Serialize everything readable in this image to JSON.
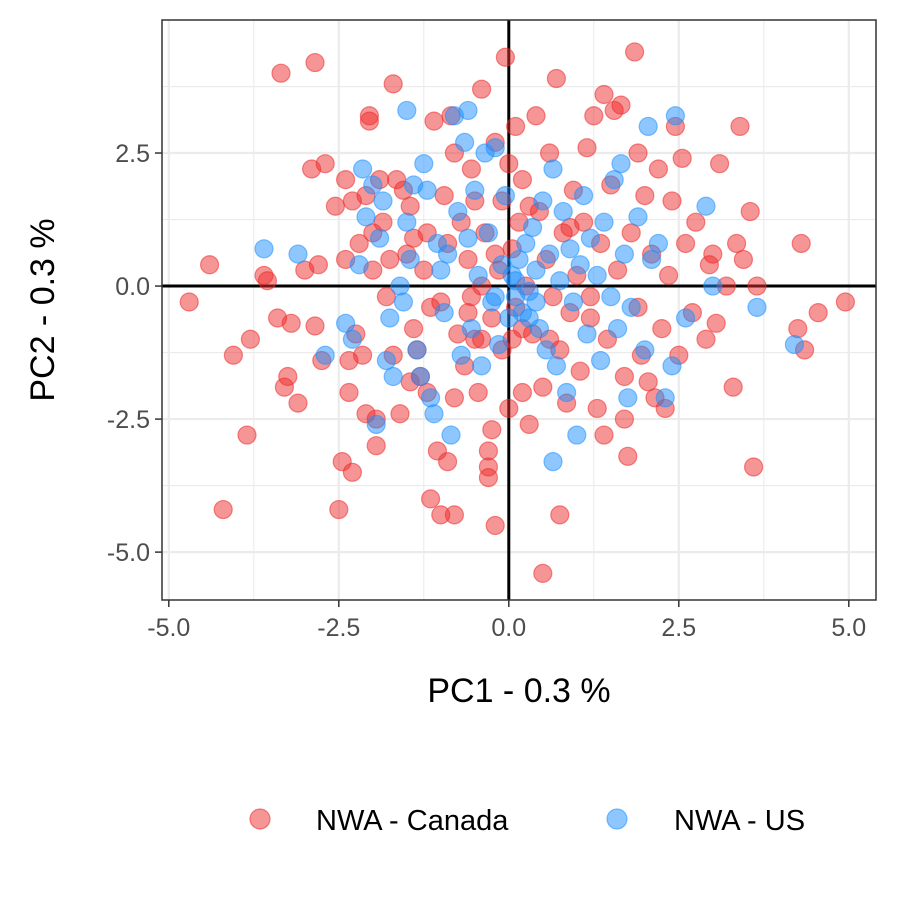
{
  "chart_data": {
    "type": "scatter",
    "xlabel": "PC1 - 0.3 %",
    "ylabel": "PC2 - 0.3 %",
    "xlim": [
      -5.1,
      5.4
    ],
    "ylim": [
      -5.9,
      5.0
    ],
    "x_ticks": [
      -5.0,
      -2.5,
      0.0,
      2.5,
      5.0
    ],
    "x_tick_labels": [
      "-5.0",
      "-2.5",
      "0.0",
      "2.5",
      "5.0"
    ],
    "y_ticks": [
      -5.0,
      -2.5,
      0.0,
      2.5
    ],
    "y_tick_labels": [
      "-5.0",
      "-2.5",
      "0.0",
      "2.5"
    ],
    "grid": true,
    "reference_lines": {
      "x": 0,
      "y": 0
    },
    "legend_position": "bottom",
    "series": [
      {
        "name": "NWA - Canada",
        "color": "#EE2C2C",
        "points": [
          [
            -4.7,
            -0.3
          ],
          [
            -4.4,
            0.4
          ],
          [
            -4.2,
            -4.2
          ],
          [
            -4.05,
            -1.3
          ],
          [
            -3.85,
            -2.8
          ],
          [
            -3.8,
            -1.0
          ],
          [
            -3.6,
            0.2
          ],
          [
            -3.55,
            0.1
          ],
          [
            -3.4,
            -0.6
          ],
          [
            -3.35,
            4.0
          ],
          [
            -3.3,
            -1.9
          ],
          [
            -3.25,
            -1.7
          ],
          [
            -3.2,
            -0.7
          ],
          [
            -3.1,
            -2.2
          ],
          [
            -3.0,
            0.3
          ],
          [
            -2.9,
            2.2
          ],
          [
            -2.85,
            4.2
          ],
          [
            -2.85,
            -0.75
          ],
          [
            -2.8,
            0.4
          ],
          [
            -2.75,
            -1.4
          ],
          [
            -2.7,
            2.3
          ],
          [
            -2.55,
            1.5
          ],
          [
            -2.5,
            -4.2
          ],
          [
            -2.45,
            -3.3
          ],
          [
            -2.4,
            2.0
          ],
          [
            -2.4,
            0.5
          ],
          [
            -2.35,
            -1.4
          ],
          [
            -2.35,
            -2.0
          ],
          [
            -2.3,
            -3.5
          ],
          [
            -2.3,
            1.6
          ],
          [
            -2.25,
            -0.9
          ],
          [
            -2.2,
            0.8
          ],
          [
            -2.15,
            -1.3
          ],
          [
            -2.1,
            -2.4
          ],
          [
            -2.1,
            1.7
          ],
          [
            -2.05,
            3.2
          ],
          [
            -2.05,
            3.1
          ],
          [
            -2.0,
            0.3
          ],
          [
            -2.0,
            1.0
          ],
          [
            -1.95,
            -3.0
          ],
          [
            -1.95,
            -2.5
          ],
          [
            -1.9,
            2.0
          ],
          [
            -1.85,
            1.2
          ],
          [
            -1.8,
            -0.2
          ],
          [
            -1.75,
            0.5
          ],
          [
            -1.7,
            3.8
          ],
          [
            -1.7,
            -1.3
          ],
          [
            -1.65,
            2.0
          ],
          [
            -1.6,
            -2.4
          ],
          [
            -1.55,
            1.8
          ],
          [
            -1.5,
            0.6
          ],
          [
            -1.45,
            -1.8
          ],
          [
            -1.45,
            1.5
          ],
          [
            -1.4,
            -0.8
          ],
          [
            -1.35,
            -1.2
          ],
          [
            -1.3,
            -1.7
          ],
          [
            -1.25,
            0.3
          ],
          [
            -1.2,
            -2.0
          ],
          [
            -1.2,
            1.0
          ],
          [
            -1.15,
            -0.4
          ],
          [
            -1.15,
            -4.0
          ],
          [
            -1.1,
            3.1
          ],
          [
            -1.05,
            -3.1
          ],
          [
            -1.0,
            -0.3
          ],
          [
            -1.0,
            -4.3
          ],
          [
            -0.95,
            1.7
          ],
          [
            -0.9,
            -3.3
          ],
          [
            -0.9,
            0.8
          ],
          [
            -0.85,
            3.2
          ],
          [
            -0.8,
            2.5
          ],
          [
            -0.8,
            -4.3
          ],
          [
            -0.75,
            -0.9
          ],
          [
            -0.7,
            1.2
          ],
          [
            -0.65,
            -1.5
          ],
          [
            -0.6,
            0.5
          ],
          [
            -0.55,
            2.2
          ],
          [
            -0.55,
            -0.2
          ],
          [
            -0.5,
            -1.0
          ],
          [
            -0.5,
            1.6
          ],
          [
            -0.45,
            -2.0
          ],
          [
            -0.4,
            3.7
          ],
          [
            -0.4,
            0.0
          ],
          [
            -0.35,
            1.0
          ],
          [
            -0.3,
            -3.1
          ],
          [
            -0.3,
            -3.4
          ],
          [
            -0.3,
            -3.6
          ],
          [
            -0.25,
            -2.7
          ],
          [
            -0.25,
            -0.6
          ],
          [
            -0.2,
            2.7
          ],
          [
            -0.2,
            -4.5
          ],
          [
            -0.15,
            0.3
          ],
          [
            -0.1,
            1.6
          ],
          [
            -0.1,
            -1.2
          ],
          [
            -0.05,
            4.3
          ],
          [
            0.0,
            2.3
          ],
          [
            0.0,
            -2.3
          ],
          [
            0.05,
            -1.0
          ],
          [
            0.05,
            0.7
          ],
          [
            0.1,
            3.0
          ],
          [
            0.1,
            -0.4
          ],
          [
            0.15,
            1.2
          ],
          [
            0.2,
            -2.0
          ],
          [
            0.2,
            2.0
          ],
          [
            0.25,
            0.0
          ],
          [
            0.3,
            -2.6
          ],
          [
            0.35,
            -0.9
          ],
          [
            0.4,
            3.2
          ],
          [
            0.45,
            1.4
          ],
          [
            0.5,
            -5.4
          ],
          [
            0.5,
            -1.9
          ],
          [
            0.55,
            0.5
          ],
          [
            0.6,
            2.5
          ],
          [
            0.65,
            -0.2
          ],
          [
            0.7,
            3.9
          ],
          [
            0.75,
            -4.3
          ],
          [
            0.75,
            -1.2
          ],
          [
            0.8,
            1.0
          ],
          [
            0.85,
            -2.2
          ],
          [
            0.9,
            -0.5
          ],
          [
            0.95,
            1.8
          ],
          [
            1.0,
            0.2
          ],
          [
            1.05,
            -1.6
          ],
          [
            1.1,
            1.2
          ],
          [
            1.15,
            2.6
          ],
          [
            1.2,
            -0.6
          ],
          [
            1.25,
            3.2
          ],
          [
            1.3,
            -2.3
          ],
          [
            1.35,
            0.8
          ],
          [
            1.4,
            3.6
          ],
          [
            1.4,
            -2.8
          ],
          [
            1.45,
            -1.0
          ],
          [
            1.5,
            1.9
          ],
          [
            1.55,
            3.3
          ],
          [
            1.6,
            0.3
          ],
          [
            1.65,
            3.4
          ],
          [
            1.7,
            -1.7
          ],
          [
            1.7,
            -2.5
          ],
          [
            1.75,
            -3.2
          ],
          [
            1.8,
            1.0
          ],
          [
            1.85,
            4.4
          ],
          [
            1.9,
            2.5
          ],
          [
            1.9,
            -0.4
          ],
          [
            1.95,
            -1.3
          ],
          [
            2.0,
            1.7
          ],
          [
            2.05,
            -1.8
          ],
          [
            2.1,
            0.6
          ],
          [
            2.15,
            -2.1
          ],
          [
            2.2,
            2.2
          ],
          [
            2.25,
            -0.8
          ],
          [
            2.3,
            -2.3
          ],
          [
            2.35,
            0.2
          ],
          [
            2.4,
            1.6
          ],
          [
            2.45,
            3.0
          ],
          [
            2.5,
            -1.3
          ],
          [
            2.55,
            2.4
          ],
          [
            2.6,
            0.8
          ],
          [
            2.7,
            -0.5
          ],
          [
            2.75,
            1.2
          ],
          [
            2.9,
            -1.0
          ],
          [
            2.95,
            0.4
          ],
          [
            3.0,
            0.6
          ],
          [
            3.05,
            -0.7
          ],
          [
            3.1,
            2.3
          ],
          [
            3.2,
            0.0
          ],
          [
            3.3,
            -1.9
          ],
          [
            3.35,
            0.8
          ],
          [
            3.4,
            3.0
          ],
          [
            3.45,
            0.5
          ],
          [
            3.55,
            1.4
          ],
          [
            3.6,
            -3.4
          ],
          [
            3.65,
            0.0
          ],
          [
            4.25,
            -0.8
          ],
          [
            4.3,
            0.8
          ],
          [
            4.35,
            -1.2
          ],
          [
            4.55,
            -0.5
          ],
          [
            4.95,
            -0.3
          ],
          [
            -0.6,
            -0.5
          ],
          [
            -0.4,
            -1.0
          ],
          [
            0.3,
            1.5
          ],
          [
            0.6,
            -1.0
          ],
          [
            -1.4,
            0.9
          ],
          [
            1.2,
            -0.2
          ],
          [
            -0.2,
            0.6
          ],
          [
            0.2,
            -0.8
          ],
          [
            -0.8,
            -2.1
          ],
          [
            0.9,
            1.1
          ]
        ]
      },
      {
        "name": "NWA - US",
        "color": "#1E90FF",
        "points": [
          [
            -3.6,
            0.7
          ],
          [
            -3.1,
            0.6
          ],
          [
            -2.7,
            -1.3
          ],
          [
            -2.4,
            -0.7
          ],
          [
            -2.3,
            -1.0
          ],
          [
            -2.2,
            0.4
          ],
          [
            -2.15,
            2.2
          ],
          [
            -2.1,
            1.3
          ],
          [
            -2.0,
            1.9
          ],
          [
            -1.95,
            -2.6
          ],
          [
            -1.9,
            0.9
          ],
          [
            -1.85,
            1.6
          ],
          [
            -1.8,
            -1.4
          ],
          [
            -1.75,
            -0.6
          ],
          [
            -1.7,
            -1.7
          ],
          [
            -1.6,
            0.0
          ],
          [
            -1.55,
            -0.3
          ],
          [
            -1.5,
            1.2
          ],
          [
            -1.5,
            3.3
          ],
          [
            -1.45,
            0.5
          ],
          [
            -1.4,
            1.9
          ],
          [
            -1.35,
            -1.2
          ],
          [
            -1.3,
            -1.7
          ],
          [
            -1.25,
            2.3
          ],
          [
            -1.2,
            1.8
          ],
          [
            -1.15,
            -2.1
          ],
          [
            -1.1,
            -2.4
          ],
          [
            -1.05,
            0.8
          ],
          [
            -1.0,
            0.3
          ],
          [
            -0.95,
            -0.5
          ],
          [
            -0.9,
            0.6
          ],
          [
            -0.85,
            -2.8
          ],
          [
            -0.8,
            3.2
          ],
          [
            -0.75,
            1.4
          ],
          [
            -0.7,
            -1.3
          ],
          [
            -0.65,
            2.7
          ],
          [
            -0.6,
            0.9
          ],
          [
            -0.55,
            -0.8
          ],
          [
            -0.5,
            1.8
          ],
          [
            -0.45,
            0.2
          ],
          [
            -0.4,
            -1.5
          ],
          [
            -0.35,
            2.5
          ],
          [
            -0.3,
            1.0
          ],
          [
            -0.25,
            -0.3
          ],
          [
            -0.2,
            2.6
          ],
          [
            -0.15,
            -1.1
          ],
          [
            -0.1,
            0.4
          ],
          [
            -0.05,
            1.7
          ],
          [
            0.0,
            -0.6
          ],
          [
            0.05,
            0.2
          ],
          [
            0.1,
            -0.2
          ],
          [
            0.15,
            0.5
          ],
          [
            0.2,
            -0.5
          ],
          [
            0.25,
            0.8
          ],
          [
            0.3,
            -0.1
          ],
          [
            0.35,
            1.1
          ],
          [
            0.4,
            0.3
          ],
          [
            0.45,
            -0.8
          ],
          [
            0.5,
            1.6
          ],
          [
            0.55,
            -1.2
          ],
          [
            0.6,
            0.6
          ],
          [
            0.65,
            2.2
          ],
          [
            0.7,
            -1.5
          ],
          [
            0.75,
            0.1
          ],
          [
            0.8,
            1.4
          ],
          [
            0.85,
            -2.0
          ],
          [
            0.9,
            0.7
          ],
          [
            0.95,
            -0.3
          ],
          [
            1.0,
            -2.8
          ],
          [
            1.05,
            0.4
          ],
          [
            1.1,
            1.7
          ],
          [
            1.15,
            -0.9
          ],
          [
            1.2,
            0.9
          ],
          [
            1.3,
            0.2
          ],
          [
            1.35,
            -1.4
          ],
          [
            1.4,
            1.2
          ],
          [
            1.5,
            -0.2
          ],
          [
            1.55,
            2.0
          ],
          [
            1.6,
            -0.8
          ],
          [
            1.65,
            2.3
          ],
          [
            1.7,
            0.6
          ],
          [
            1.75,
            -2.1
          ],
          [
            1.8,
            -0.4
          ],
          [
            1.9,
            1.3
          ],
          [
            2.0,
            -1.2
          ],
          [
            2.05,
            3.0
          ],
          [
            2.1,
            0.5
          ],
          [
            2.2,
            0.8
          ],
          [
            2.3,
            -2.1
          ],
          [
            2.4,
            -1.5
          ],
          [
            2.45,
            3.2
          ],
          [
            2.6,
            -0.6
          ],
          [
            2.9,
            1.5
          ],
          [
            3.0,
            0.0
          ],
          [
            3.65,
            -0.4
          ],
          [
            4.2,
            -1.1
          ],
          [
            0.65,
            -3.3
          ],
          [
            -0.6,
            3.3
          ],
          [
            0.3,
            -0.6
          ],
          [
            -0.2,
            -0.2
          ],
          [
            0.1,
            0.1
          ],
          [
            0.4,
            -0.3
          ]
        ]
      }
    ]
  }
}
